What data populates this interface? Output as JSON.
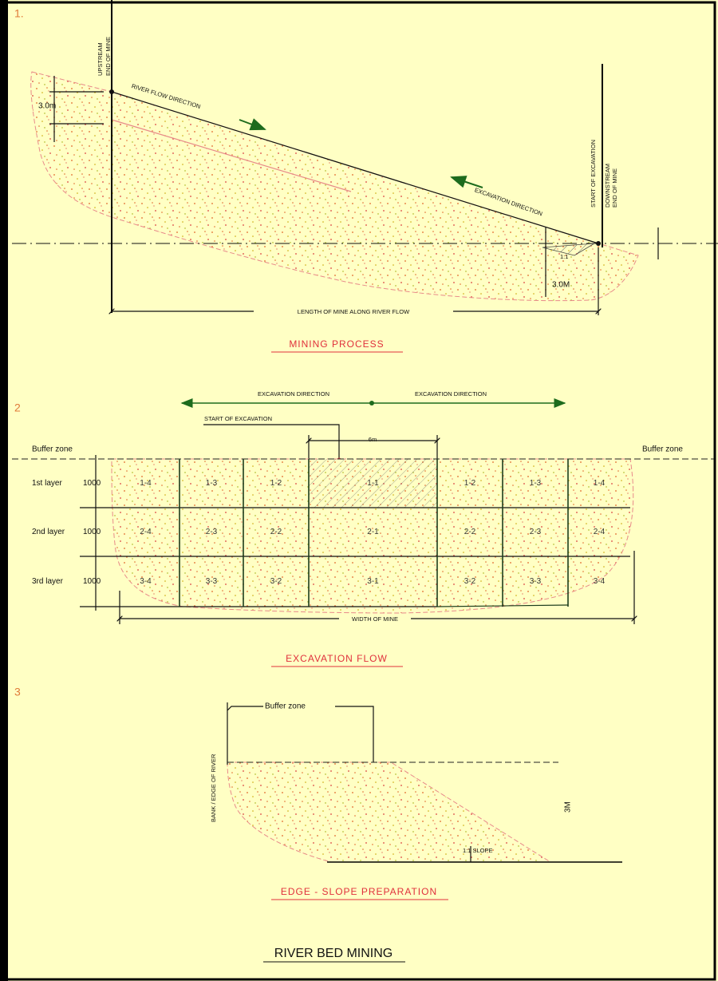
{
  "section1": {
    "number": "1.",
    "upstream": [
      "UPSTREAM",
      "END OF MINE"
    ],
    "depth": "3.0m",
    "flow": "RIVER FLOW DIRECTION",
    "start": "START OF EXCAVATION",
    "downstream": [
      "DOWNSTREAM",
      "END OF MINE"
    ],
    "excavation": "EXCAVATION DIRECTION",
    "slope": "1:1",
    "depth2": "3.0M",
    "length": "LENGTH OF MINE ALONG RIVER FLOW",
    "caption": "MINING PROCESS"
  },
  "section2": {
    "number": "2",
    "direction_left": "EXCAVATION DIRECTION",
    "direction_right": "EXCAVATION DIRECTION",
    "start": "START OF EXCAVATION",
    "spacing": "6m",
    "buffer_left": "Buffer zone",
    "buffer_right": "Buffer zone",
    "layers": [
      {
        "name": "1st layer",
        "depth": "1000",
        "cells": [
          "1-4",
          "1-3",
          "1-2",
          "1-1",
          "1-2",
          "1-3",
          "1-4"
        ]
      },
      {
        "name": "2nd layer",
        "depth": "1000",
        "cells": [
          "2-4",
          "2-3",
          "2-2",
          "2-1",
          "2-2",
          "2-3",
          "2-4"
        ]
      },
      {
        "name": "3rd layer",
        "depth": "1000",
        "cells": [
          "3-4",
          "3-3",
          "3-2",
          "3-1",
          "3-2",
          "3-3",
          "3-4"
        ]
      }
    ],
    "width": "WIDTH OF MINE",
    "caption": "EXCAVATION FLOW"
  },
  "section3": {
    "number": "3",
    "buffer": "Buffer zone",
    "bank": "BANK / EDGE OF RIVER",
    "height": "3M",
    "slope": "1:1 SLOPE",
    "caption": "EDGE - SLOPE PREPARATION"
  },
  "title": "RIVER BED MINING"
}
